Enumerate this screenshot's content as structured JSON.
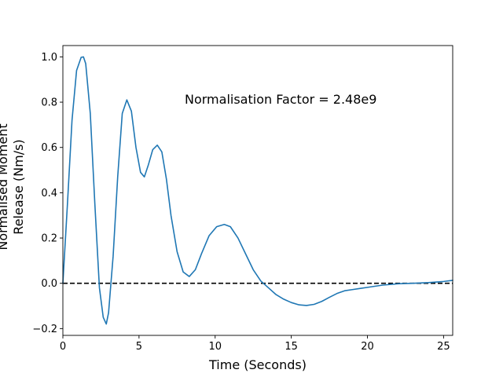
{
  "chart_data": {
    "type": "line",
    "title": "",
    "xlabel": "Time (Seconds)",
    "ylabel_lines": [
      "Normalised Moment",
      "Release (Nm/s)"
    ],
    "xlim": [
      0,
      25.6
    ],
    "ylim": [
      -0.23,
      1.05
    ],
    "xticks": [
      0,
      5,
      10,
      15,
      20,
      25
    ],
    "yticks": [
      -0.2,
      0.0,
      0.2,
      0.4,
      0.6,
      0.8,
      1.0
    ],
    "xtick_labels": [
      "0",
      "5",
      "10",
      "15",
      "20",
      "25"
    ],
    "ytick_labels": [
      "−0.2",
      "0.0",
      "0.2",
      "0.4",
      "0.6",
      "0.8",
      "1.0"
    ],
    "grid": false,
    "annotation": "Normalisation Factor = 2.48e9",
    "reference_line": {
      "y": 0.0,
      "style": "dashed",
      "color": "#000000"
    },
    "series": [
      {
        "color": "#1f77b4",
        "x": [
          0,
          0.3,
          0.6,
          0.9,
          1.2,
          1.35,
          1.5,
          1.8,
          2.1,
          2.4,
          2.65,
          2.85,
          3.0,
          3.3,
          3.6,
          3.9,
          4.2,
          4.5,
          4.8,
          5.1,
          5.35,
          5.6,
          5.9,
          6.2,
          6.5,
          6.8,
          7.1,
          7.5,
          7.9,
          8.3,
          8.7,
          9.1,
          9.6,
          10.1,
          10.6,
          11.0,
          11.5,
          12.0,
          12.5,
          13.0,
          13.5,
          14.0,
          14.5,
          15.0,
          15.5,
          16.0,
          16.5,
          17.0,
          17.5,
          18.0,
          18.5,
          19.0,
          19.5,
          20.0,
          21.0,
          22.0,
          23.0,
          24.0,
          25.0,
          25.6
        ],
        "values": [
          0.0,
          0.35,
          0.72,
          0.94,
          0.998,
          1.0,
          0.97,
          0.75,
          0.35,
          -0.02,
          -0.15,
          -0.18,
          -0.13,
          0.12,
          0.47,
          0.75,
          0.81,
          0.76,
          0.6,
          0.49,
          0.47,
          0.52,
          0.59,
          0.61,
          0.58,
          0.46,
          0.3,
          0.14,
          0.05,
          0.03,
          0.06,
          0.13,
          0.21,
          0.25,
          0.26,
          0.25,
          0.2,
          0.13,
          0.06,
          0.01,
          -0.02,
          -0.05,
          -0.07,
          -0.085,
          -0.095,
          -0.098,
          -0.093,
          -0.08,
          -0.062,
          -0.045,
          -0.033,
          -0.028,
          -0.023,
          -0.018,
          -0.008,
          -0.002,
          0.0,
          0.003,
          0.008,
          0.013
        ]
      }
    ]
  }
}
